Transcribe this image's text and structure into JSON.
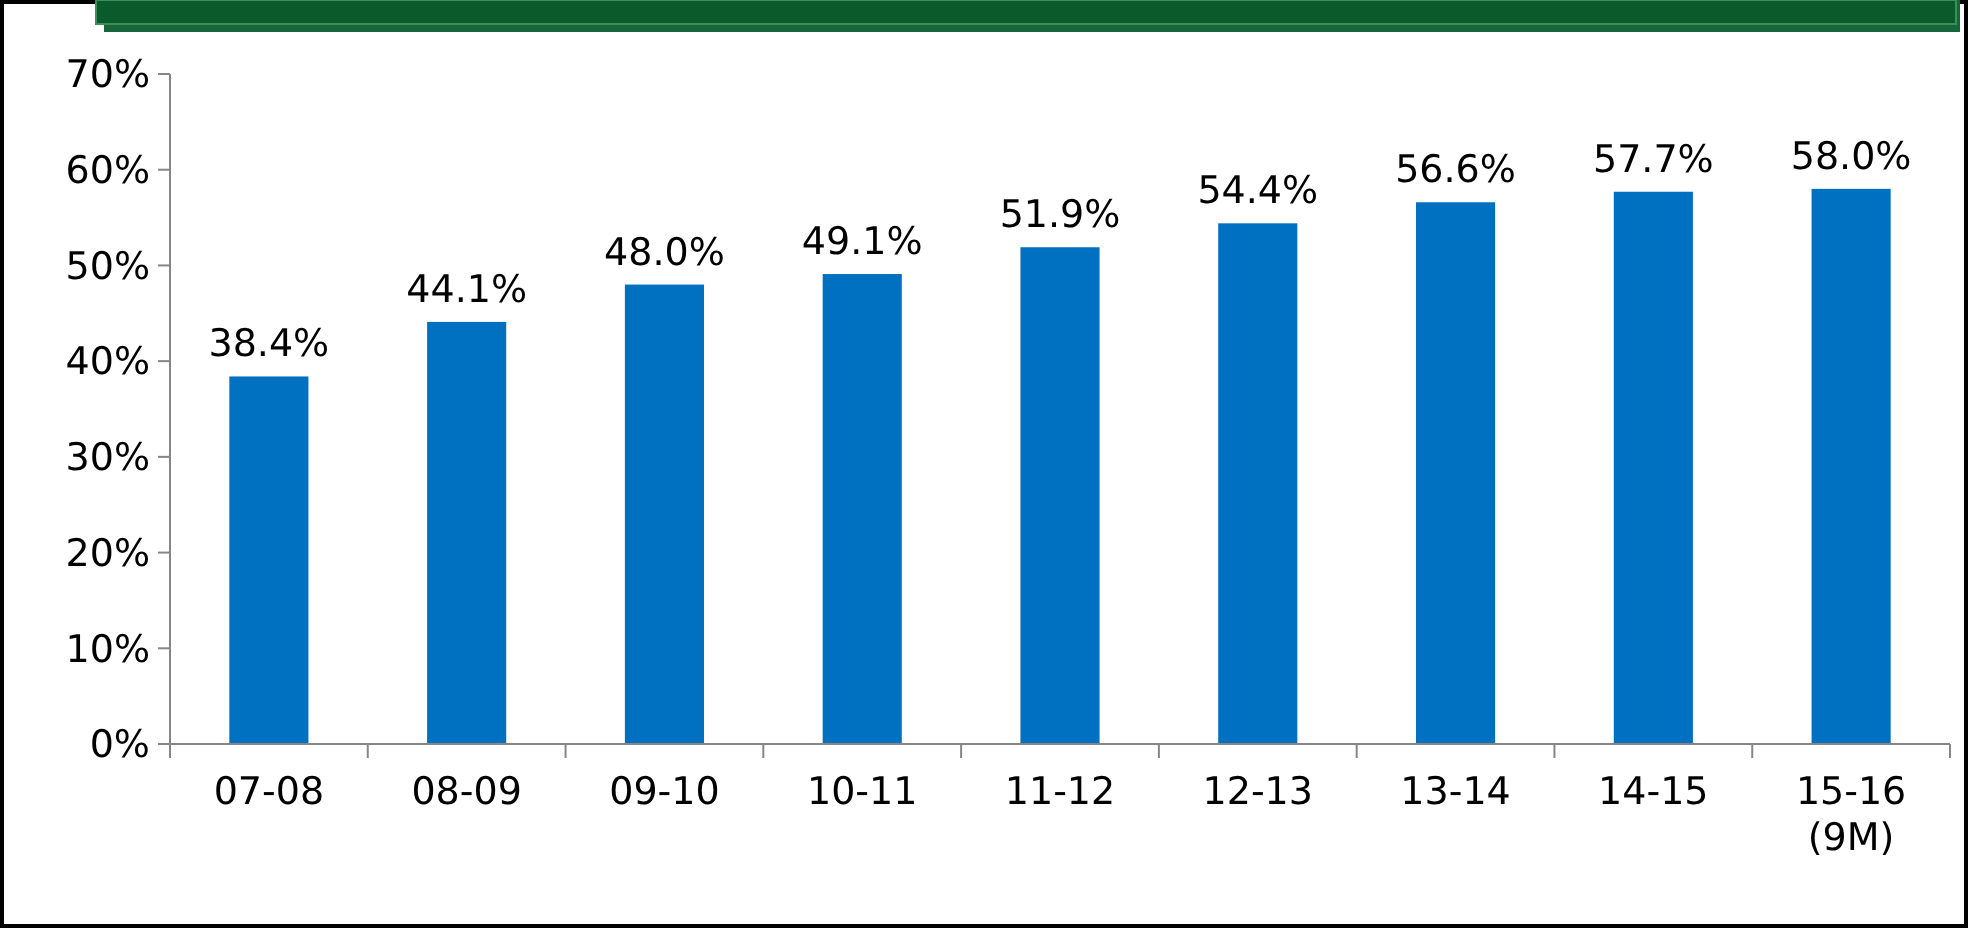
{
  "chart_data": {
    "type": "bar",
    "categories": [
      "07-08",
      "08-09",
      "09-10",
      "10-11",
      "11-12",
      "12-13",
      "13-14",
      "14-15",
      "15-16\n(9M)"
    ],
    "values": [
      38.4,
      44.1,
      48.0,
      49.1,
      51.9,
      54.4,
      56.6,
      57.7,
      58.0
    ],
    "value_labels": [
      "38.4%",
      "44.1%",
      "48.0%",
      "49.1%",
      "51.9%",
      "54.4%",
      "56.6%",
      "57.7%",
      "58.0%"
    ],
    "color": "#0070c0",
    "ylim": [
      0,
      70
    ],
    "yticks": [
      {
        "value": 0,
        "label": "0%"
      },
      {
        "value": 10,
        "label": "10%"
      },
      {
        "value": 20,
        "label": "20%"
      },
      {
        "value": 30,
        "label": "30%"
      },
      {
        "value": 40,
        "label": "40%"
      },
      {
        "value": 50,
        "label": "50%"
      },
      {
        "value": 60,
        "label": "60%"
      },
      {
        "value": 70,
        "label": "70%"
      }
    ],
    "grid": false
  }
}
